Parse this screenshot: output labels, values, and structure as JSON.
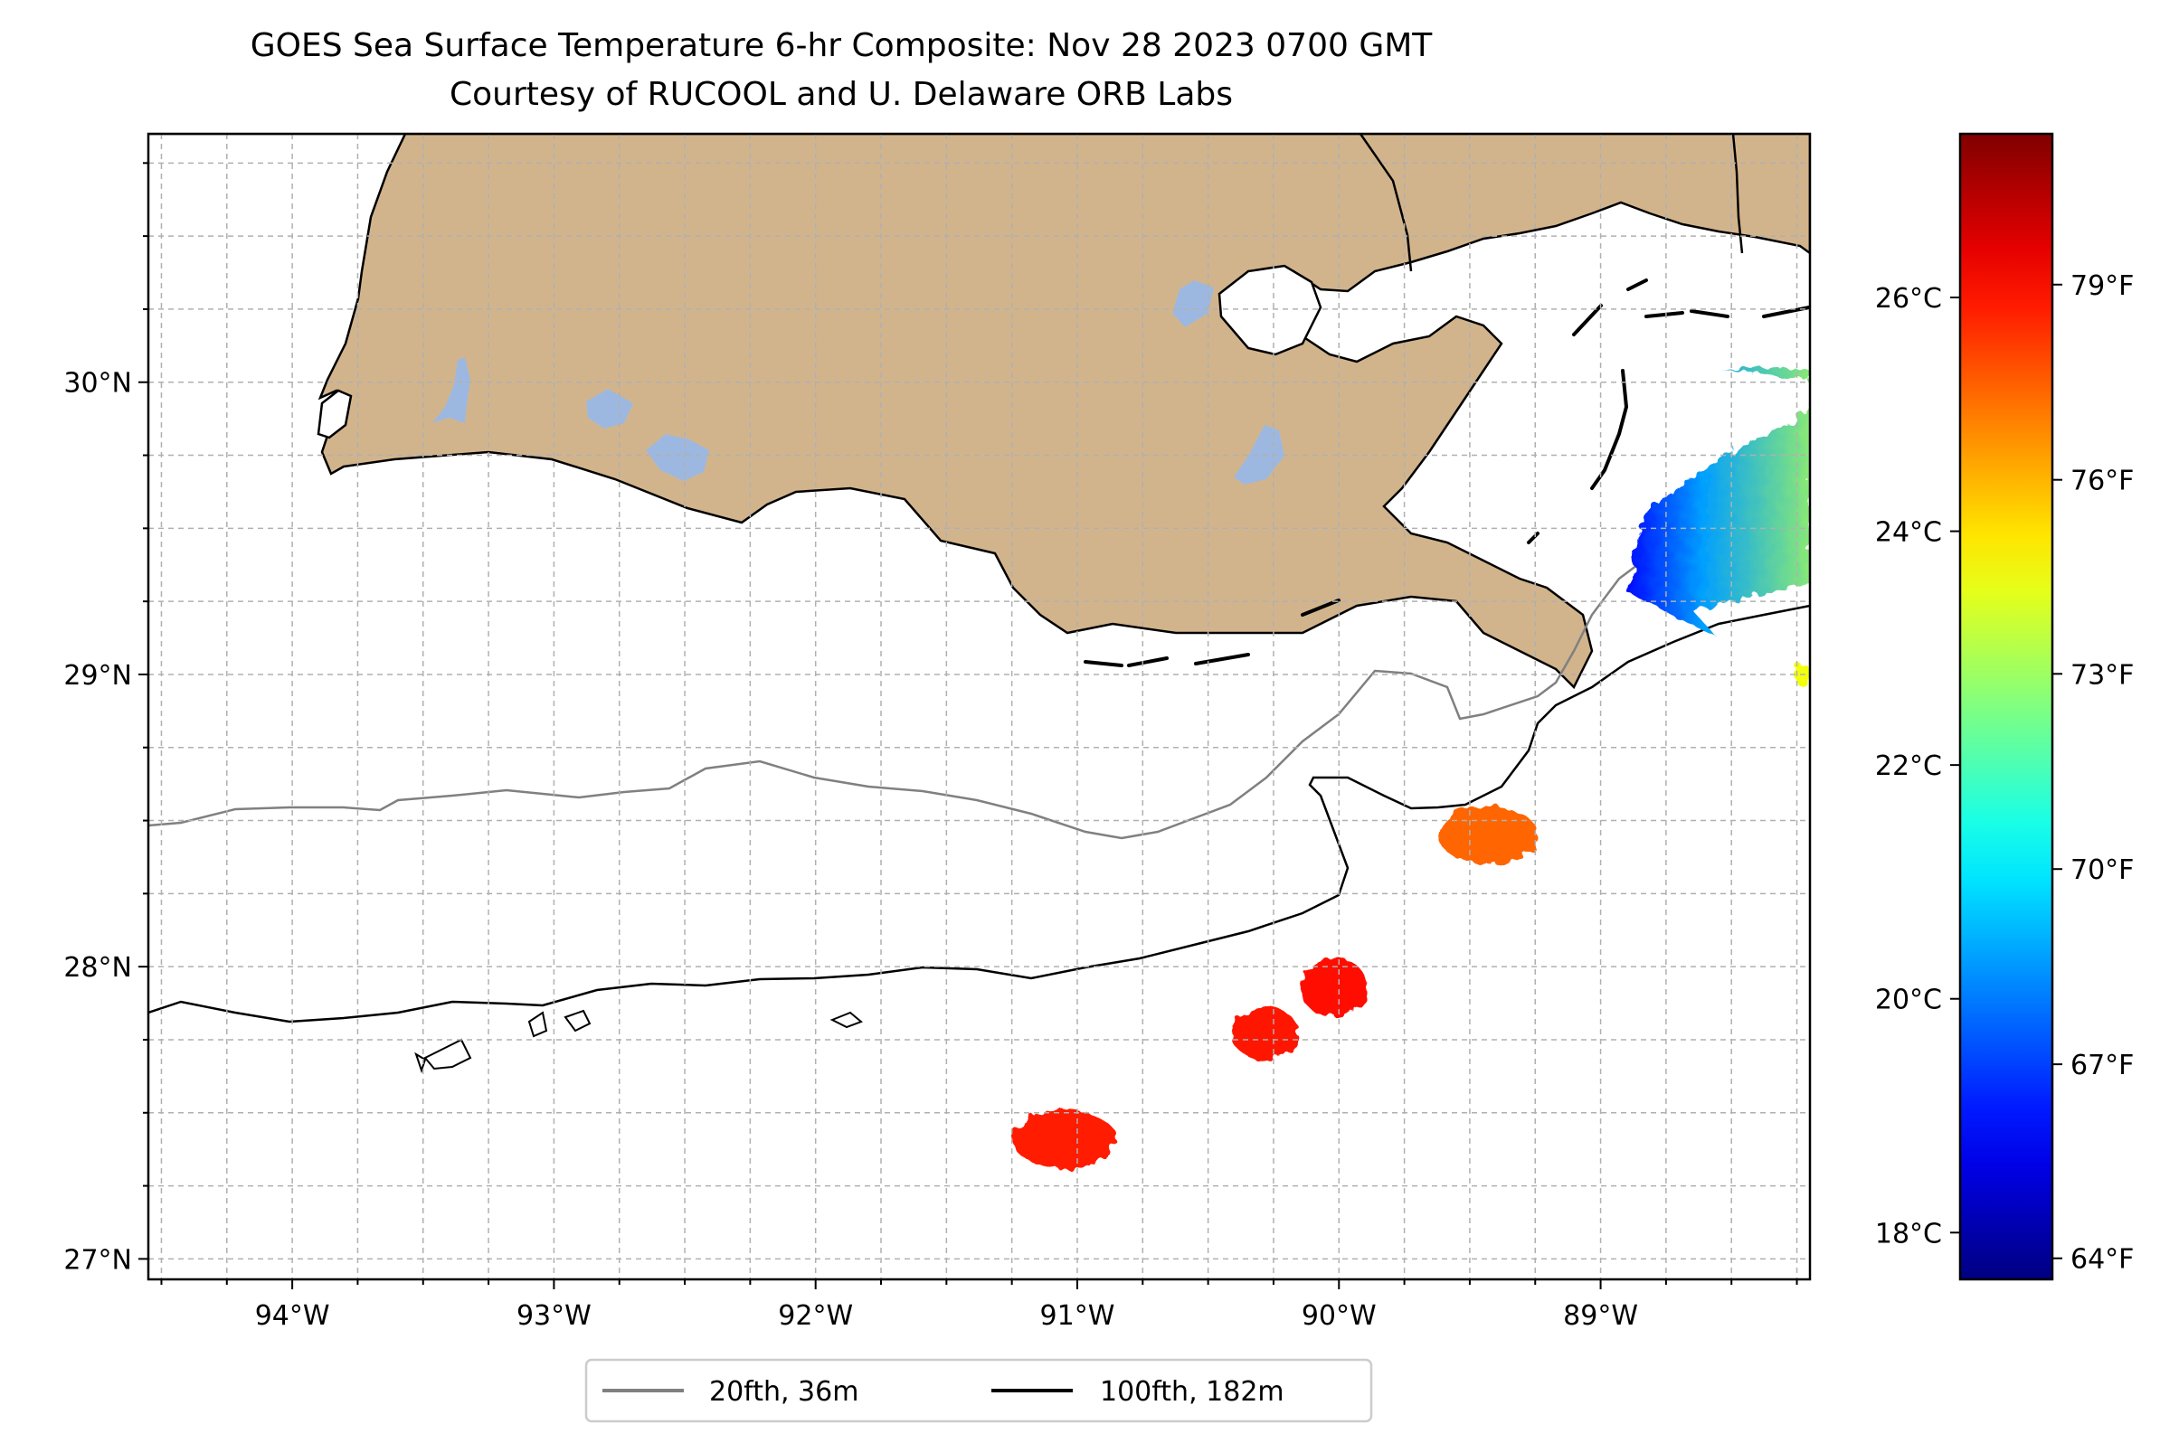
{
  "title": {
    "line1": "GOES Sea Surface Temperature 6-hr Composite: Nov 28 2023 0700 GMT",
    "line2": "Courtesy of RUCOOL and U. Delaware ORB Labs"
  },
  "map": {
    "lon_range": [
      -94.55,
      -88.2
    ],
    "lat_range": [
      26.93,
      30.85
    ],
    "lon_ticks": [
      {
        "value": -94,
        "label": "94°W"
      },
      {
        "value": -93,
        "label": "93°W"
      },
      {
        "value": -92,
        "label": "92°W"
      },
      {
        "value": -91,
        "label": "91°W"
      },
      {
        "value": -90,
        "label": "90°W"
      },
      {
        "value": -89,
        "label": "89°W"
      }
    ],
    "lat_ticks": [
      {
        "value": 27,
        "label": "27°N"
      },
      {
        "value": 28,
        "label": "28°N"
      },
      {
        "value": 29,
        "label": "29°N"
      },
      {
        "value": 30,
        "label": "30°N"
      }
    ],
    "gridlines": true,
    "colors": {
      "land": "#D2B48C",
      "lakes": "#9DB8E0",
      "coast": "#000000",
      "isobath_20fth": "#808080",
      "isobath_100fth": "#000000",
      "grid": "#b0b0b0"
    }
  },
  "legend": {
    "items": [
      {
        "label": "20fth, 36m",
        "color": "#808080"
      },
      {
        "label": "100fth, 182m",
        "color": "#000000"
      }
    ],
    "placement": "bottom-center"
  },
  "colorbar": {
    "colormap": "jet",
    "range_c": [
      17.6,
      27.4
    ],
    "celsius_ticks": [
      {
        "value": 18,
        "label": "18°C"
      },
      {
        "value": 20,
        "label": "20°C"
      },
      {
        "value": 22,
        "label": "22°C"
      },
      {
        "value": 24,
        "label": "24°C"
      },
      {
        "value": 26,
        "label": "26°C"
      }
    ],
    "fahrenheit_ticks": [
      {
        "value_c": 17.78,
        "label": "64°F"
      },
      {
        "value_c": 19.44,
        "label": "67°F"
      },
      {
        "value_c": 21.11,
        "label": "70°F"
      },
      {
        "value_c": 22.78,
        "label": "73°F"
      },
      {
        "value_c": 24.44,
        "label": "76°F"
      },
      {
        "value_c": 26.11,
        "label": "79°F"
      }
    ]
  },
  "sst_patches": [
    {
      "lon": -91.05,
      "lat": 27.41,
      "rx": 0.2,
      "ry": 0.1,
      "temp_c": 25.9
    },
    {
      "lon": -90.28,
      "lat": 27.77,
      "rx": 0.13,
      "ry": 0.09,
      "temp_c": 26.0
    },
    {
      "lon": -90.02,
      "lat": 27.93,
      "rx": 0.13,
      "ry": 0.1,
      "temp_c": 26.1
    },
    {
      "lon": -89.43,
      "lat": 28.45,
      "rx": 0.19,
      "ry": 0.1,
      "temp_c": 25.2
    },
    {
      "lon": -88.23,
      "lat": 29.0,
      "rx": 0.03,
      "ry": 0.04,
      "temp_c": 23.6
    }
  ],
  "sst_gradient_patch": {
    "lon_min": -88.97,
    "lon_max": -88.2,
    "lat_min": 29.22,
    "lat_max": 30.05,
    "temp_c_west": 18.9,
    "temp_c_east": 23.0
  }
}
